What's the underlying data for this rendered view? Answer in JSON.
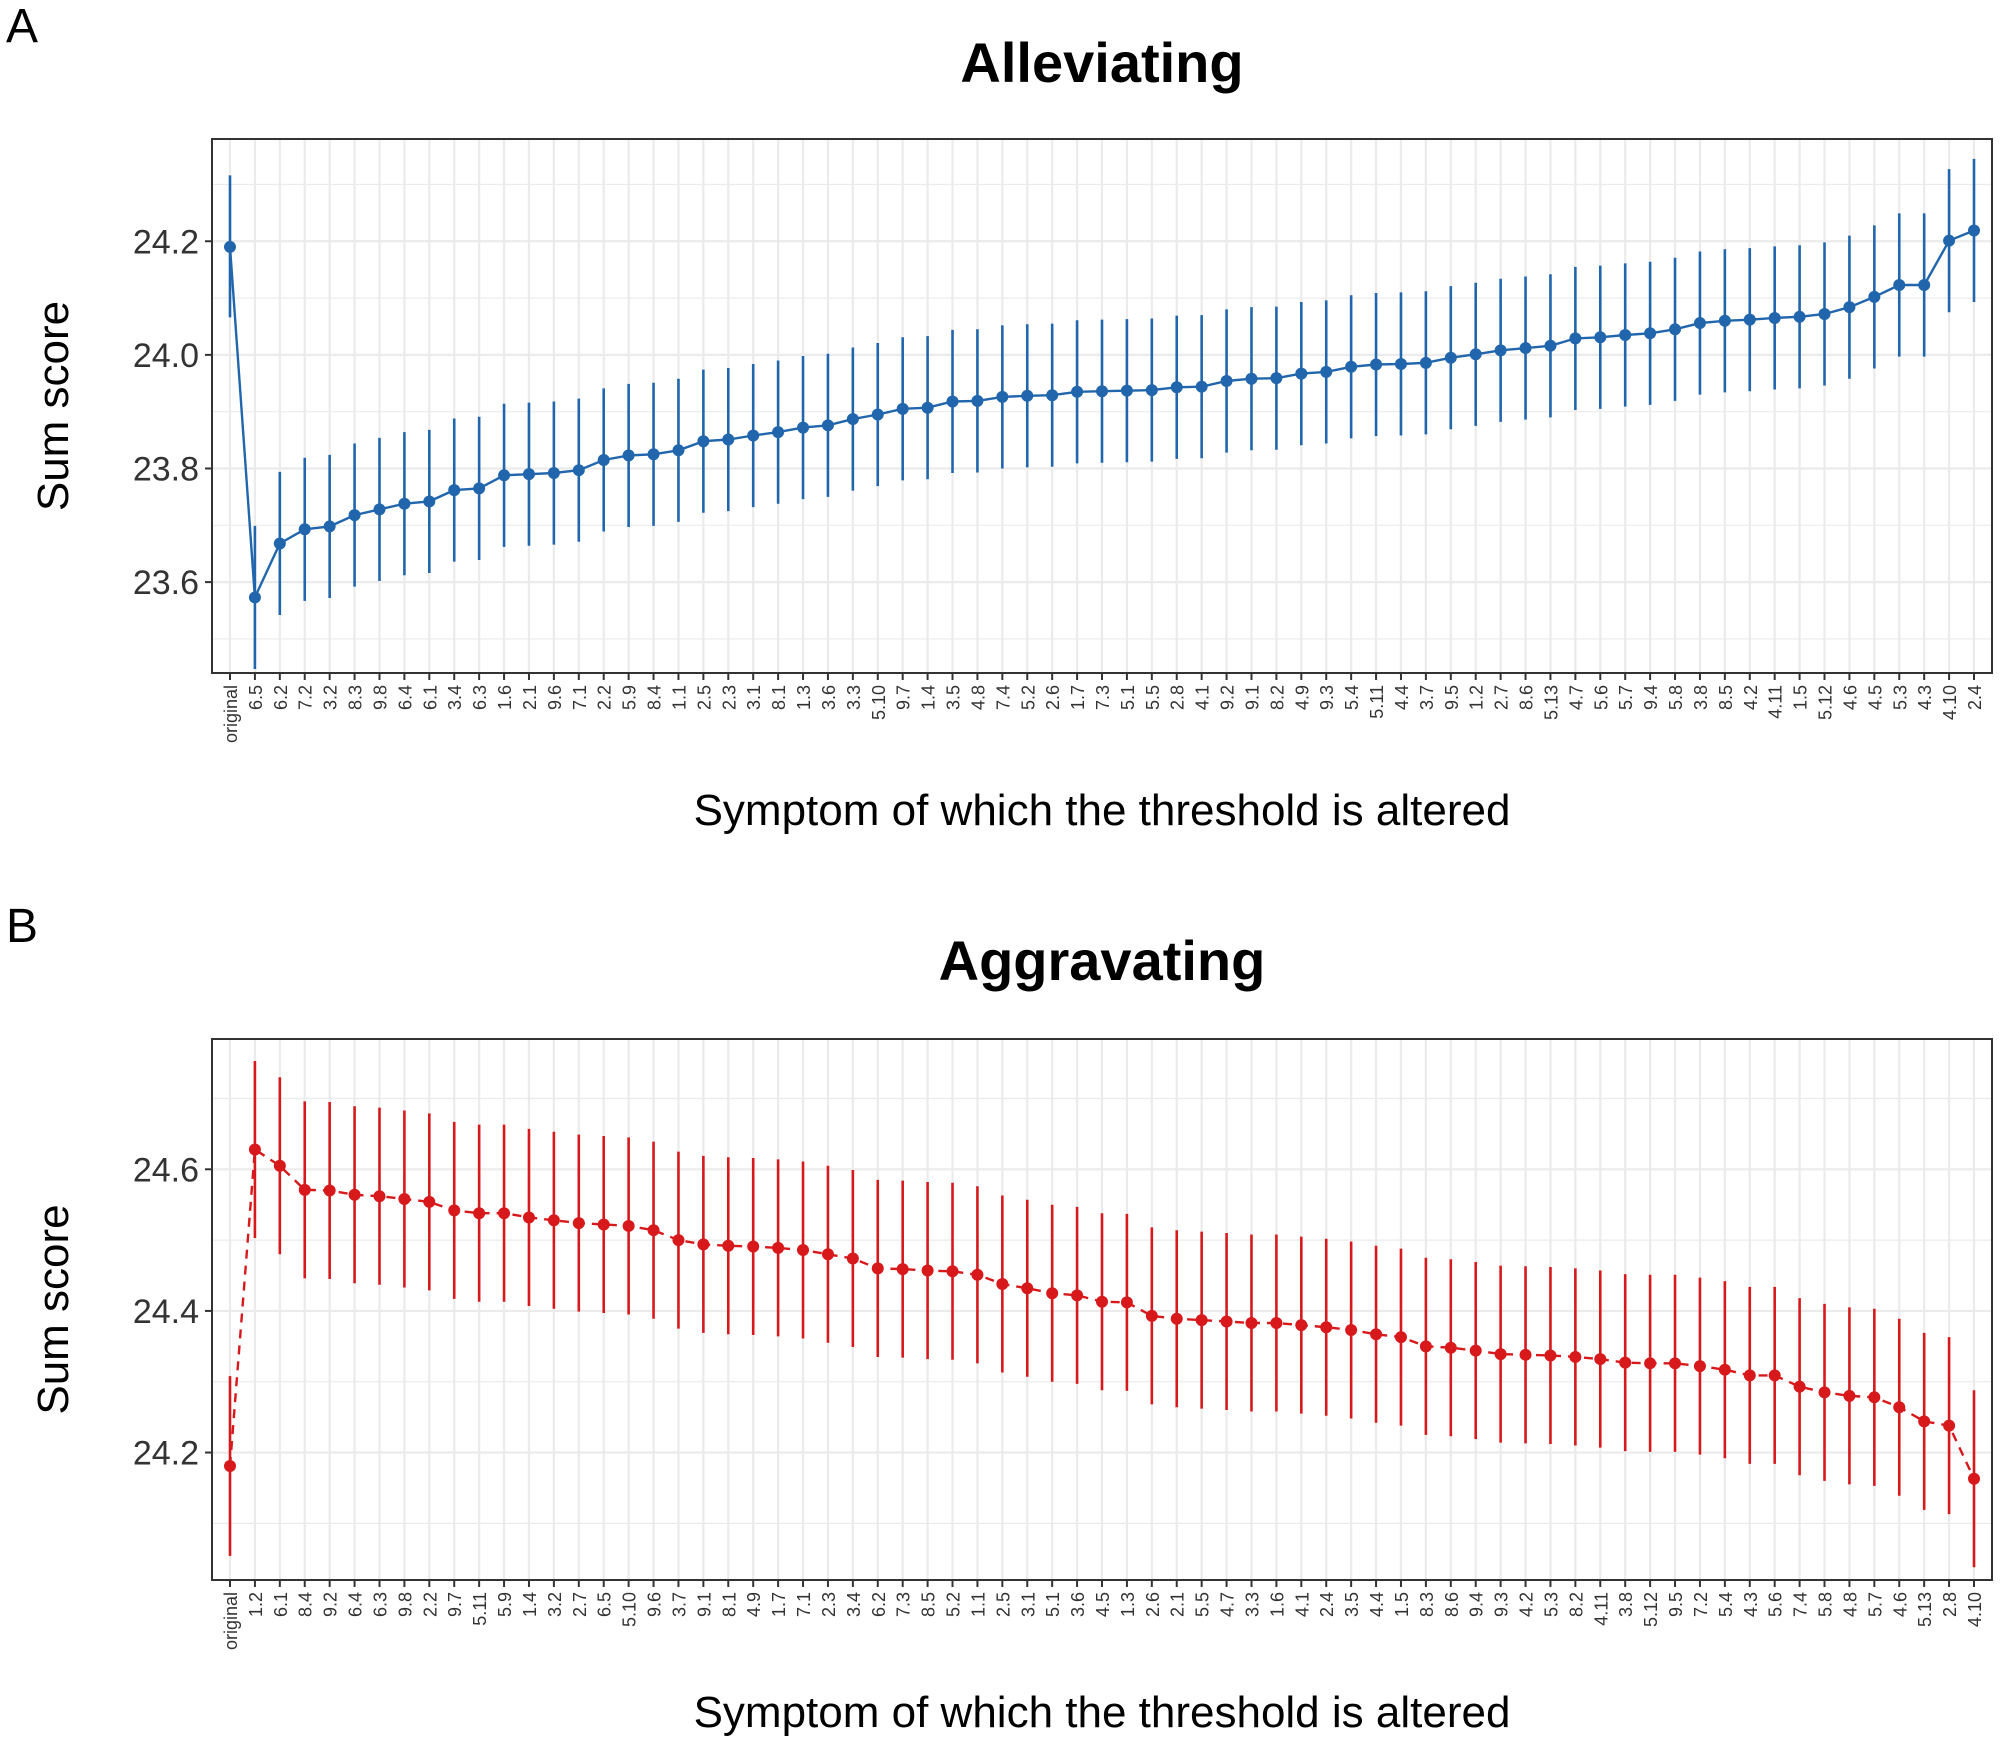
{
  "chart_data": [
    {
      "type": "line",
      "panel": "A",
      "title": "Alleviating",
      "xlabel": "Symptom of which the threshold is altered",
      "ylabel": "Sum score",
      "yticks": [
        "23.6",
        "23.8",
        "24.0",
        "24.2"
      ],
      "ylim": [
        23.44,
        24.38
      ],
      "color": "#2166ac",
      "line_style": "solid",
      "grid": true,
      "categories": [
        "original",
        "6.5",
        "6.2",
        "7.2",
        "3.2",
        "8.3",
        "9.8",
        "6.4",
        "6.1",
        "3.4",
        "6.3",
        "1.6",
        "2.1",
        "9.6",
        "7.1",
        "2.2",
        "5.9",
        "8.4",
        "1.1",
        "2.5",
        "2.3",
        "3.1",
        "8.1",
        "1.3",
        "3.6",
        "3.3",
        "5.10",
        "9.7",
        "1.4",
        "3.5",
        "4.8",
        "7.4",
        "5.2",
        "2.6",
        "1.7",
        "7.3",
        "5.1",
        "5.5",
        "2.8",
        "4.1",
        "9.2",
        "9.1",
        "8.2",
        "4.9",
        "9.3",
        "5.4",
        "5.11",
        "4.4",
        "3.7",
        "9.5",
        "1.2",
        "2.7",
        "8.6",
        "5.13",
        "4.7",
        "5.6",
        "5.7",
        "9.4",
        "5.8",
        "3.8",
        "8.5",
        "4.2",
        "4.11",
        "1.5",
        "5.12",
        "4.6",
        "4.5",
        "5.3",
        "4.3",
        "4.10",
        "2.4"
      ],
      "values": [
        24.19,
        23.573,
        23.668,
        23.693,
        23.698,
        23.718,
        23.728,
        23.738,
        23.742,
        23.762,
        23.765,
        23.788,
        23.79,
        23.792,
        23.797,
        23.815,
        23.823,
        23.825,
        23.832,
        23.848,
        23.851,
        23.858,
        23.864,
        23.872,
        23.876,
        23.887,
        23.895,
        23.905,
        23.907,
        23.918,
        23.919,
        23.926,
        23.928,
        23.929,
        23.935,
        23.936,
        23.937,
        23.938,
        23.943,
        23.944,
        23.954,
        23.958,
        23.959,
        23.967,
        23.97,
        23.979,
        23.983,
        23.984,
        23.986,
        23.995,
        24.001,
        24.008,
        24.012,
        24.016,
        24.029,
        24.031,
        24.035,
        24.038,
        24.045,
        24.056,
        24.06,
        24.062,
        24.065,
        24.067,
        24.072,
        24.084,
        24.102,
        24.123,
        24.123,
        24.201,
        24.219
      ],
      "lower": [
        24.066,
        23.447,
        23.542,
        23.567,
        23.572,
        23.592,
        23.602,
        23.612,
        23.616,
        23.636,
        23.639,
        23.662,
        23.664,
        23.666,
        23.671,
        23.689,
        23.697,
        23.699,
        23.706,
        23.722,
        23.725,
        23.732,
        23.738,
        23.746,
        23.75,
        23.761,
        23.769,
        23.779,
        23.781,
        23.792,
        23.793,
        23.8,
        23.802,
        23.803,
        23.809,
        23.81,
        23.811,
        23.812,
        23.817,
        23.818,
        23.828,
        23.832,
        23.833,
        23.841,
        23.844,
        23.853,
        23.857,
        23.858,
        23.86,
        23.869,
        23.875,
        23.882,
        23.886,
        23.89,
        23.903,
        23.905,
        23.909,
        23.912,
        23.919,
        23.93,
        23.934,
        23.936,
        23.939,
        23.941,
        23.946,
        23.958,
        23.976,
        23.997,
        23.997,
        24.075,
        24.093
      ],
      "upper": [
        24.316,
        23.699,
        23.794,
        23.819,
        23.824,
        23.844,
        23.854,
        23.864,
        23.868,
        23.888,
        23.891,
        23.914,
        23.916,
        23.918,
        23.923,
        23.941,
        23.949,
        23.951,
        23.958,
        23.974,
        23.977,
        23.984,
        23.99,
        23.998,
        24.002,
        24.013,
        24.021,
        24.031,
        24.033,
        24.044,
        24.045,
        24.052,
        24.054,
        24.055,
        24.061,
        24.062,
        24.063,
        24.064,
        24.069,
        24.07,
        24.08,
        24.084,
        24.085,
        24.093,
        24.096,
        24.105,
        24.109,
        24.11,
        24.112,
        24.121,
        24.127,
        24.134,
        24.138,
        24.142,
        24.155,
        24.157,
        24.161,
        24.164,
        24.171,
        24.182,
        24.186,
        24.188,
        24.191,
        24.193,
        24.198,
        24.21,
        24.228,
        24.249,
        24.249,
        24.327,
        24.345
      ]
    },
    {
      "type": "line",
      "panel": "B",
      "title": "Aggravating",
      "xlabel": "Symptom of which the threshold is altered",
      "ylabel": "Sum score",
      "yticks": [
        "24.2",
        "24.4",
        "24.6"
      ],
      "ylim": [
        24.02,
        24.784
      ],
      "color": "#d7191c",
      "line_style": "dashed",
      "grid": true,
      "categories": [
        "original",
        "1.2",
        "6.1",
        "8.4",
        "9.2",
        "6.4",
        "6.3",
        "9.8",
        "2.2",
        "9.7",
        "5.11",
        "5.9",
        "1.4",
        "3.2",
        "2.7",
        "6.5",
        "5.10",
        "9.6",
        "3.7",
        "9.1",
        "8.1",
        "4.9",
        "1.7",
        "7.1",
        "2.3",
        "3.4",
        "6.2",
        "7.3",
        "8.5",
        "5.2",
        "1.1",
        "2.5",
        "3.1",
        "5.1",
        "3.6",
        "4.5",
        "1.3",
        "2.6",
        "2.1",
        "5.5",
        "4.7",
        "3.3",
        "1.6",
        "4.1",
        "2.4",
        "3.5",
        "4.4",
        "1.5",
        "8.3",
        "8.6",
        "9.4",
        "9.3",
        "4.2",
        "5.3",
        "8.2",
        "4.11",
        "3.8",
        "5.12",
        "9.5",
        "7.2",
        "5.4",
        "4.3",
        "5.6",
        "7.4",
        "5.8",
        "4.8",
        "5.7",
        "4.6",
        "5.13",
        "2.8",
        "4.10"
      ],
      "values": [
        24.181,
        24.628,
        24.605,
        24.571,
        24.57,
        24.564,
        24.562,
        24.558,
        24.554,
        24.542,
        24.538,
        24.538,
        24.532,
        24.528,
        24.524,
        24.522,
        24.52,
        24.514,
        24.5,
        24.494,
        24.492,
        24.491,
        24.489,
        24.486,
        24.48,
        24.474,
        24.46,
        24.459,
        24.457,
        24.456,
        24.451,
        24.438,
        24.432,
        24.425,
        24.422,
        24.413,
        24.412,
        24.393,
        24.389,
        24.387,
        24.385,
        24.383,
        24.383,
        24.38,
        24.377,
        24.373,
        24.367,
        24.363,
        24.35,
        24.348,
        24.344,
        24.339,
        24.338,
        24.337,
        24.335,
        24.332,
        24.327,
        24.326,
        24.326,
        24.322,
        24.317,
        24.309,
        24.309,
        24.293,
        24.285,
        24.28,
        24.278,
        24.264,
        24.244,
        24.238,
        24.163
      ],
      "lower": [
        24.054,
        24.503,
        24.48,
        24.446,
        24.445,
        24.439,
        24.437,
        24.433,
        24.429,
        24.417,
        24.413,
        24.413,
        24.407,
        24.403,
        24.399,
        24.397,
        24.395,
        24.389,
        24.375,
        24.369,
        24.367,
        24.366,
        24.364,
        24.361,
        24.355,
        24.349,
        24.335,
        24.334,
        24.332,
        24.331,
        24.326,
        24.313,
        24.307,
        24.3,
        24.297,
        24.288,
        24.287,
        24.268,
        24.264,
        24.262,
        24.26,
        24.258,
        24.258,
        24.255,
        24.252,
        24.248,
        24.242,
        24.238,
        24.225,
        24.223,
        24.219,
        24.214,
        24.213,
        24.212,
        24.21,
        24.207,
        24.202,
        24.201,
        24.201,
        24.197,
        24.192,
        24.184,
        24.184,
        24.168,
        24.16,
        24.155,
        24.153,
        24.139,
        24.119,
        24.113,
        24.038
      ],
      "upper": [
        24.308,
        24.753,
        24.73,
        24.696,
        24.695,
        24.689,
        24.687,
        24.683,
        24.679,
        24.667,
        24.663,
        24.663,
        24.657,
        24.653,
        24.649,
        24.647,
        24.645,
        24.639,
        24.625,
        24.619,
        24.617,
        24.616,
        24.614,
        24.611,
        24.605,
        24.599,
        24.585,
        24.584,
        24.582,
        24.581,
        24.576,
        24.563,
        24.557,
        24.55,
        24.547,
        24.538,
        24.537,
        24.518,
        24.514,
        24.512,
        24.51,
        24.508,
        24.508,
        24.505,
        24.502,
        24.498,
        24.492,
        24.488,
        24.475,
        24.473,
        24.469,
        24.464,
        24.463,
        24.462,
        24.46,
        24.457,
        24.452,
        24.451,
        24.451,
        24.447,
        24.442,
        24.434,
        24.434,
        24.418,
        24.41,
        24.405,
        24.403,
        24.389,
        24.369,
        24.363,
        24.288
      ]
    }
  ]
}
